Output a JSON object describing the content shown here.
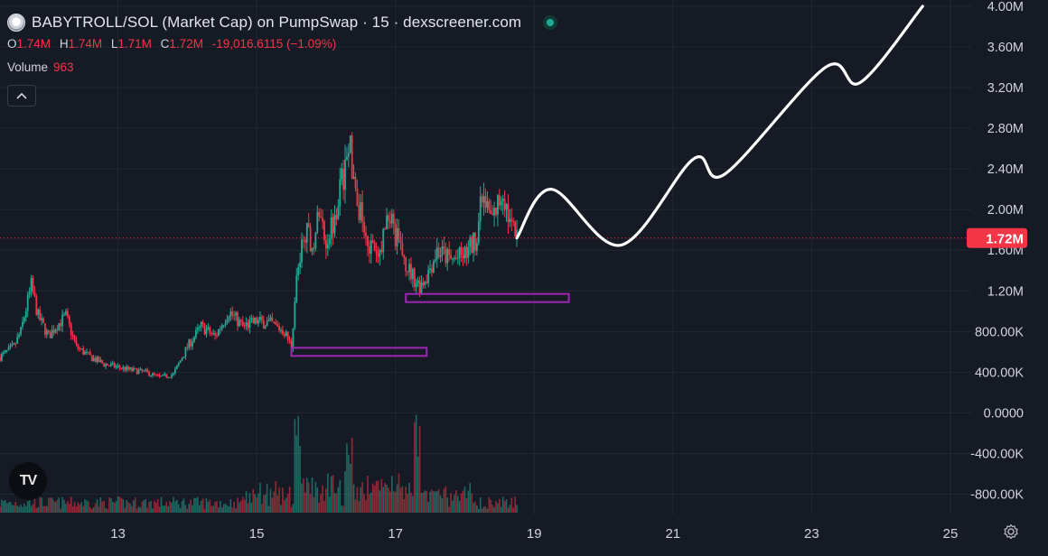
{
  "header": {
    "title": "BABYTROLL/SOL (Market Cap) on PumpSwap · 15 · dexscreener.com",
    "ohlc": [
      {
        "key": "O",
        "value": "1.74M"
      },
      {
        "key": "H",
        "value": "1.74M"
      },
      {
        "key": "L",
        "value": "1.71M"
      },
      {
        "key": "C",
        "value": "1.72M"
      }
    ],
    "change": "-19,016.6115 (−1.09%)",
    "volume_label": "Volume",
    "volume_value": "963"
  },
  "colors": {
    "background": "#161a25",
    "up": "#22ab94",
    "down": "#f23645",
    "grid": "#232733",
    "zone": "#9c27b0",
    "projection": "#ffffff",
    "price_tag": "#f23645"
  },
  "icons": [
    "chevron-up-icon",
    "tradingview-logo-icon",
    "settings-gear-icon",
    "live-status-icon"
  ],
  "chart_data": {
    "type": "candlestick",
    "title": "BABYTROLL/SOL (Market Cap) on PumpSwap · 15 · dexscreener.com",
    "y_axis": {
      "ticks": [
        4000000,
        3600000,
        3200000,
        2800000,
        2400000,
        2000000,
        1600000,
        1200000,
        800000,
        400000,
        0,
        -400000,
        -800000
      ],
      "tick_labels": [
        "4.00M",
        "3.60M",
        "3.20M",
        "2.80M",
        "2.40M",
        "2.00M",
        "1.60M",
        "1.20M",
        "800.00K",
        "400.00K",
        "0.0000",
        "-400.00K",
        "-800.00K"
      ],
      "ylim": [
        -1000000,
        4000000
      ]
    },
    "x_axis": {
      "ticks": [
        13,
        15,
        17,
        19,
        21,
        23,
        25
      ],
      "tick_labels": [
        "13",
        "15",
        "17",
        "19",
        "21",
        "23",
        "25"
      ],
      "xlim": [
        11.3,
        25.3
      ]
    },
    "last_price": 1720000,
    "last_price_label": "1.72M",
    "price_path": [
      [
        11.3,
        550000
      ],
      [
        11.5,
        650000
      ],
      [
        11.6,
        800000
      ],
      [
        11.7,
        1100000
      ],
      [
        11.75,
        1250000
      ],
      [
        11.85,
        950000
      ],
      [
        12.0,
        750000
      ],
      [
        12.1,
        850000
      ],
      [
        12.25,
        950000
      ],
      [
        12.4,
        650000
      ],
      [
        12.6,
        550000
      ],
      [
        12.8,
        480000
      ],
      [
        13.0,
        450000
      ],
      [
        13.2,
        420000
      ],
      [
        13.4,
        400000
      ],
      [
        13.6,
        350000
      ],
      [
        13.8,
        380000
      ],
      [
        14.0,
        650000
      ],
      [
        14.2,
        850000
      ],
      [
        14.4,
        750000
      ],
      [
        14.6,
        1000000
      ],
      [
        14.8,
        850000
      ],
      [
        15.0,
        900000
      ],
      [
        15.2,
        880000
      ],
      [
        15.4,
        800000
      ],
      [
        15.5,
        650000
      ],
      [
        15.57,
        1300000
      ],
      [
        15.7,
        1800000
      ],
      [
        15.8,
        1650000
      ],
      [
        15.9,
        1950000
      ],
      [
        16.0,
        1700000
      ],
      [
        16.1,
        1900000
      ],
      [
        16.2,
        2200000
      ],
      [
        16.3,
        2500000
      ],
      [
        16.35,
        2600000
      ],
      [
        16.45,
        2100000
      ],
      [
        16.6,
        1700000
      ],
      [
        16.75,
        1500000
      ],
      [
        16.9,
        2000000
      ],
      [
        17.0,
        1750000
      ],
      [
        17.2,
        1400000
      ],
      [
        17.35,
        1250000
      ],
      [
        17.45,
        1350000
      ],
      [
        17.6,
        1600000
      ],
      [
        17.8,
        1500000
      ],
      [
        18.0,
        1550000
      ],
      [
        18.15,
        1700000
      ],
      [
        18.25,
        2100000
      ],
      [
        18.4,
        1900000
      ],
      [
        18.55,
        2200000
      ],
      [
        18.65,
        1850000
      ],
      [
        18.75,
        1720000
      ]
    ],
    "volume_spikes": [
      15.58,
      16.35,
      17.3
    ],
    "support_zones": [
      {
        "x_start": 15.5,
        "x_end": 17.45,
        "y_low": 560000,
        "y_high": 640000
      },
      {
        "x_start": 17.15,
        "x_end": 19.5,
        "y_low": 1090000,
        "y_high": 1170000
      }
    ],
    "projection": [
      [
        18.75,
        1720000
      ],
      [
        19.25,
        2200000
      ],
      [
        20.25,
        1650000
      ],
      [
        21.3,
        2500000
      ],
      [
        21.75,
        2350000
      ],
      [
        23.2,
        3400000
      ],
      [
        23.7,
        3250000
      ],
      [
        24.6,
        4000000
      ]
    ]
  }
}
